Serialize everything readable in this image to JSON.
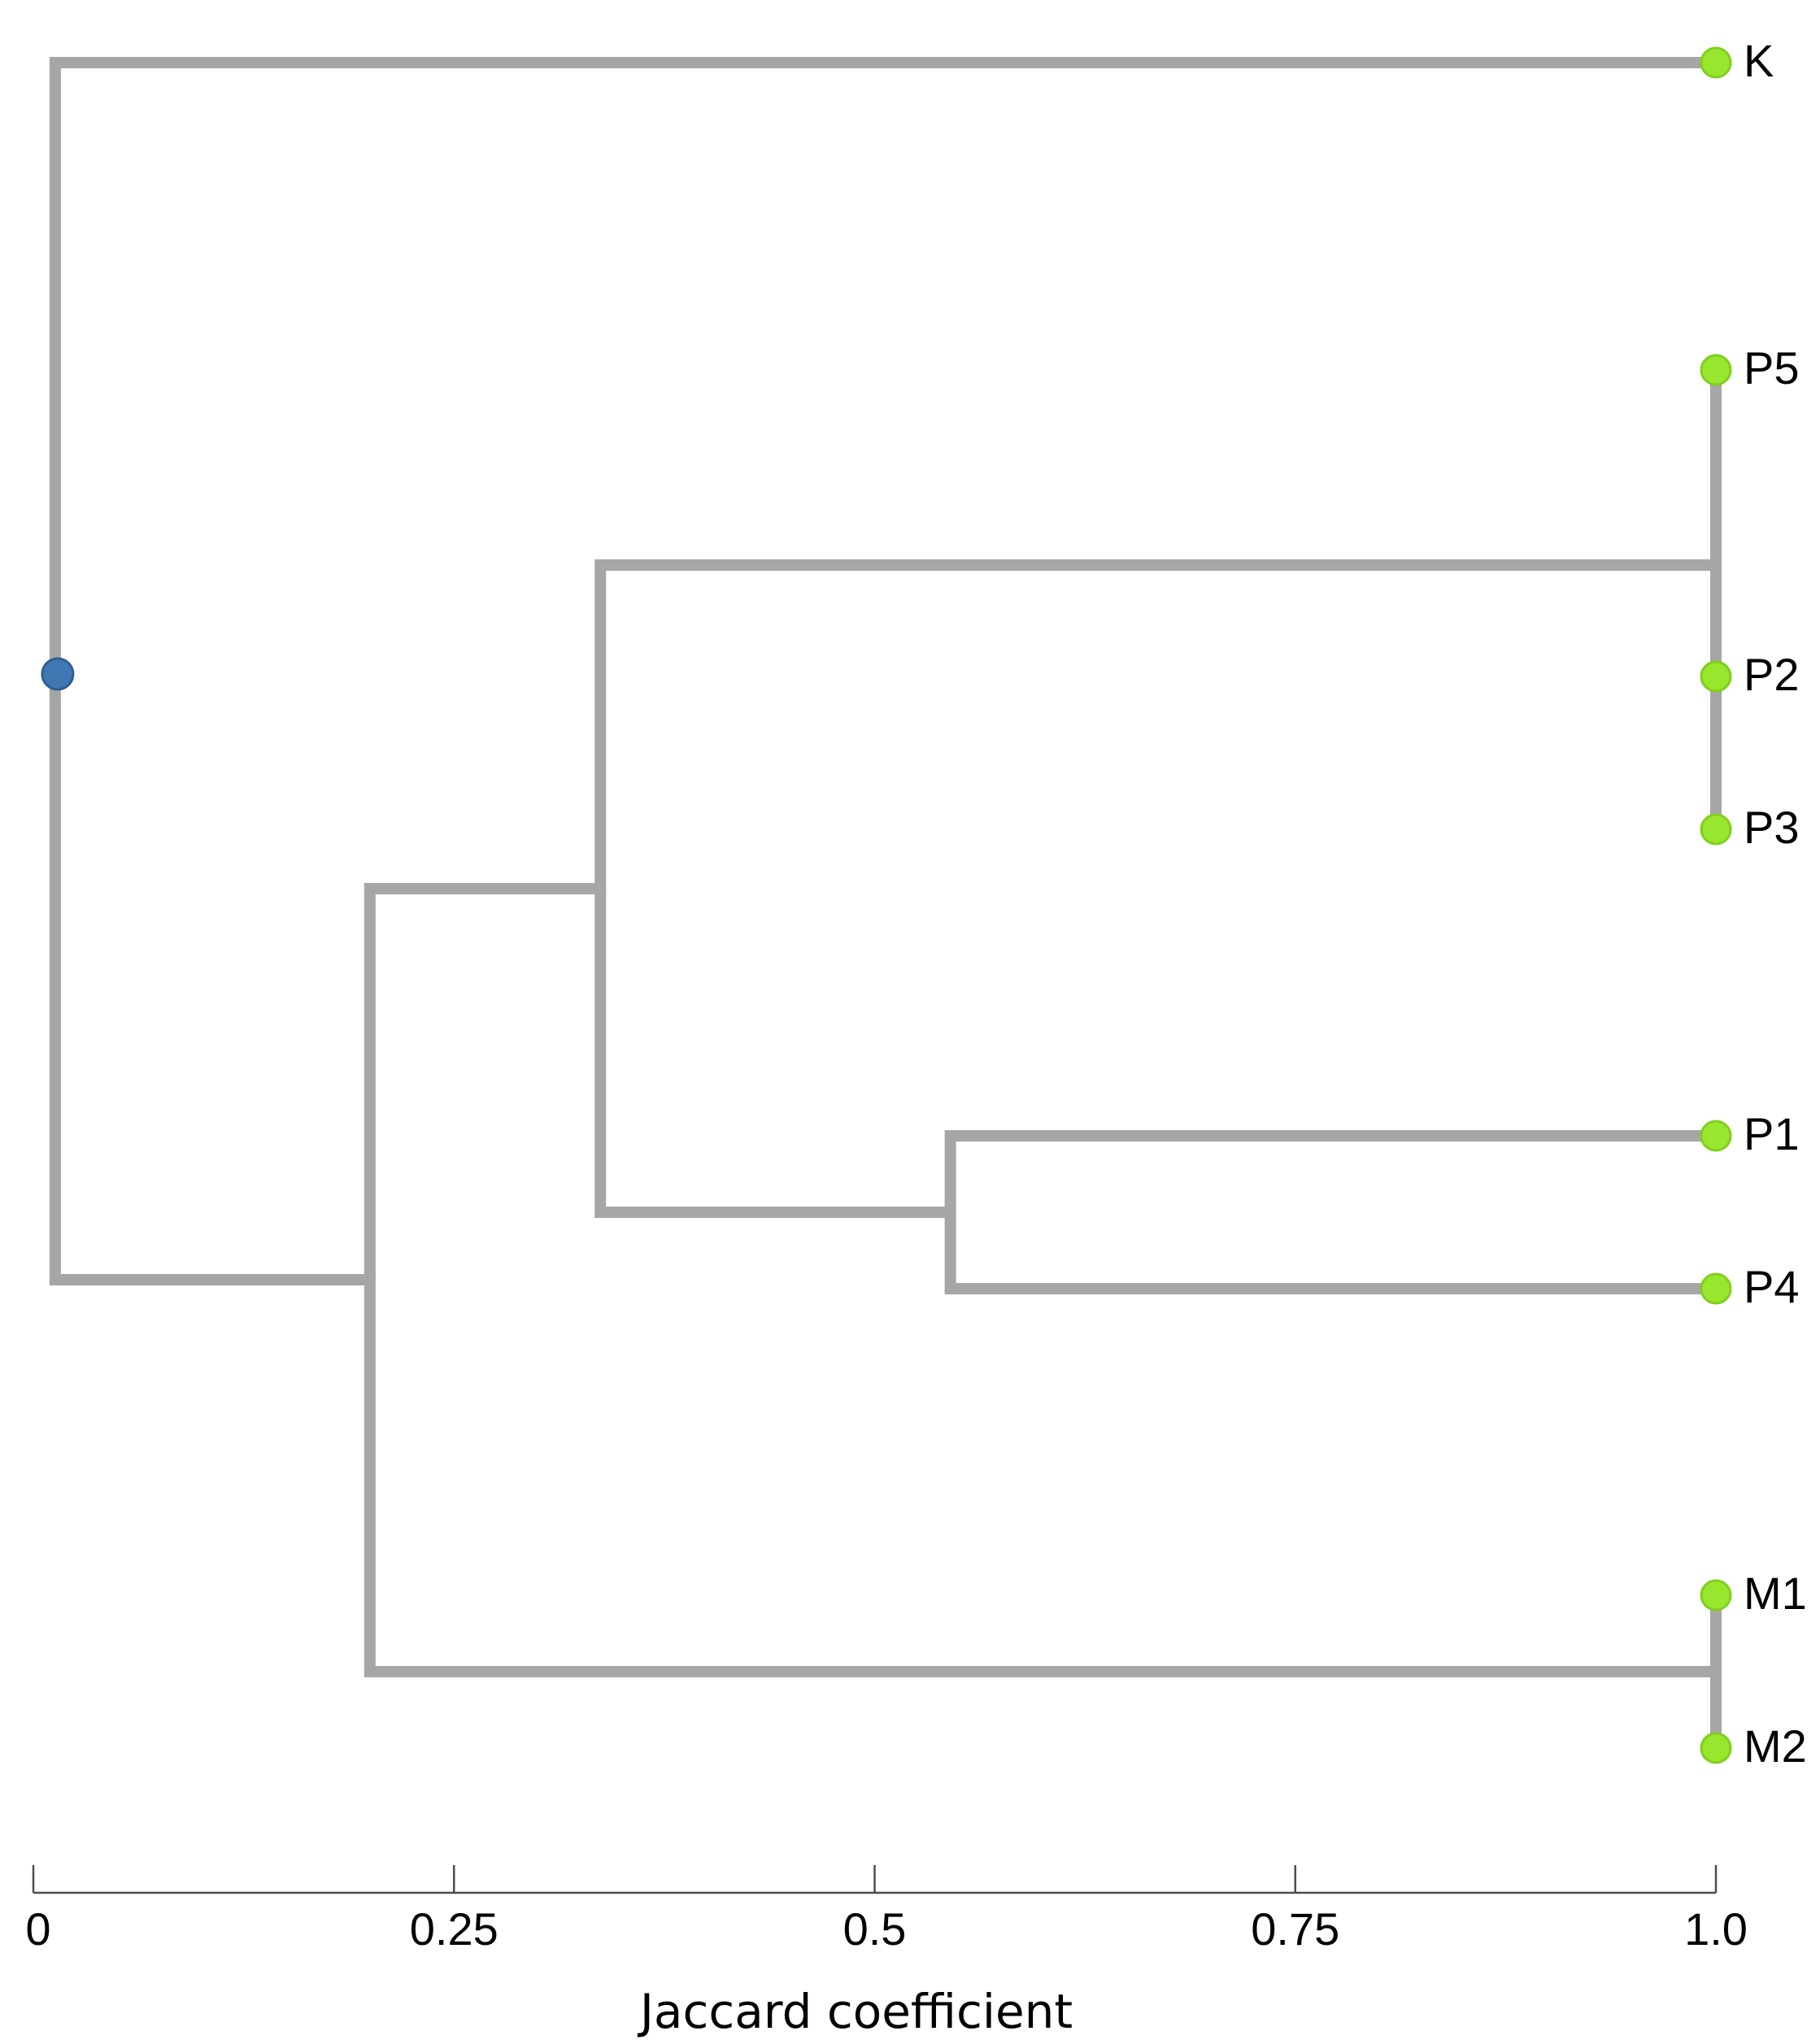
{
  "diagram": {
    "type": "dendrogram",
    "axis_label": "Jaccard coefficient",
    "axis_ticks": [
      {
        "value": 0,
        "label": "0"
      },
      {
        "value": 0.25,
        "label": "0.25"
      },
      {
        "value": 0.5,
        "label": "0.5"
      },
      {
        "value": 0.75,
        "label": "0.75"
      },
      {
        "value": 1.0,
        "label": "1.0"
      }
    ],
    "leaves": [
      "K",
      "P5",
      "P2",
      "P3",
      "P1",
      "P4",
      "M1",
      "M2"
    ],
    "merges": [
      {
        "children": [
          "P5",
          "P2",
          "P3"
        ],
        "similarity": 1.0
      },
      {
        "children": [
          "M1",
          "M2"
        ],
        "similarity": 1.0
      },
      {
        "children": [
          "P1",
          "P4"
        ],
        "similarity": 0.545
      },
      {
        "children": [
          "P5,P2,P3",
          "P1,P4"
        ],
        "similarity": 0.337
      },
      {
        "children": [
          "P",
          "M1,M2"
        ],
        "similarity": 0.2
      },
      {
        "children": [
          "K",
          "P,M"
        ],
        "similarity": 0.013
      }
    ],
    "colors": {
      "branch": "#a6a6a6",
      "leaf_node": "#99e62e",
      "root_node": "#3f78b2"
    }
  }
}
